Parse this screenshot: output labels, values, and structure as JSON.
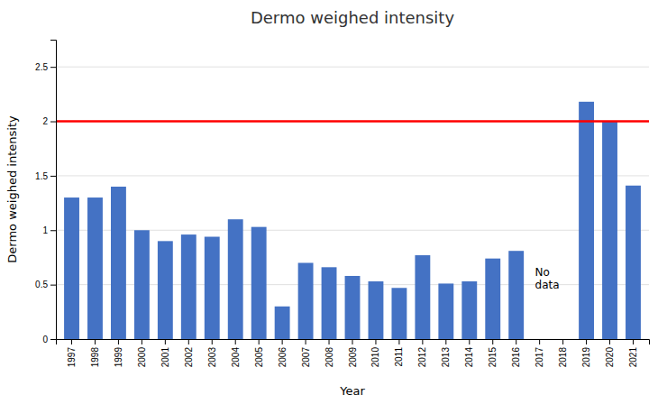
{
  "chart_data": {
    "type": "bar",
    "title": "Dermo weighed intensity",
    "x_label": "Year",
    "y_label": "Dermo weighed intensity",
    "categories": [
      "1997",
      "1998",
      "1999",
      "2000",
      "2001",
      "2002",
      "2003",
      "2004",
      "2005",
      "2006",
      "2007",
      "2008",
      "2009",
      "2010",
      "2011",
      "2012",
      "2013",
      "2014",
      "2015",
      "2016",
      "2017",
      "2018",
      "2019",
      "2020",
      "2021"
    ],
    "values": [
      1.3,
      1.3,
      1.4,
      1.0,
      0.9,
      0.96,
      0.94,
      1.1,
      1.03,
      0.3,
      0.7,
      0.66,
      0.58,
      0.53,
      0.47,
      0.77,
      0.51,
      0.53,
      0.74,
      0.81,
      0.0,
      0.0,
      2.18,
      2.0,
      1.41
    ],
    "color": "#4472C4",
    "reference_line": {
      "value": 2.0,
      "color": "#FF0000"
    },
    "annotations": [
      {
        "text": "No\ndata",
        "x": "2017"
      }
    ],
    "ylim": [
      0,
      2.75
    ],
    "yticks": [
      0,
      0.5,
      1,
      1.5,
      2,
      2.5
    ],
    "grid": true
  }
}
